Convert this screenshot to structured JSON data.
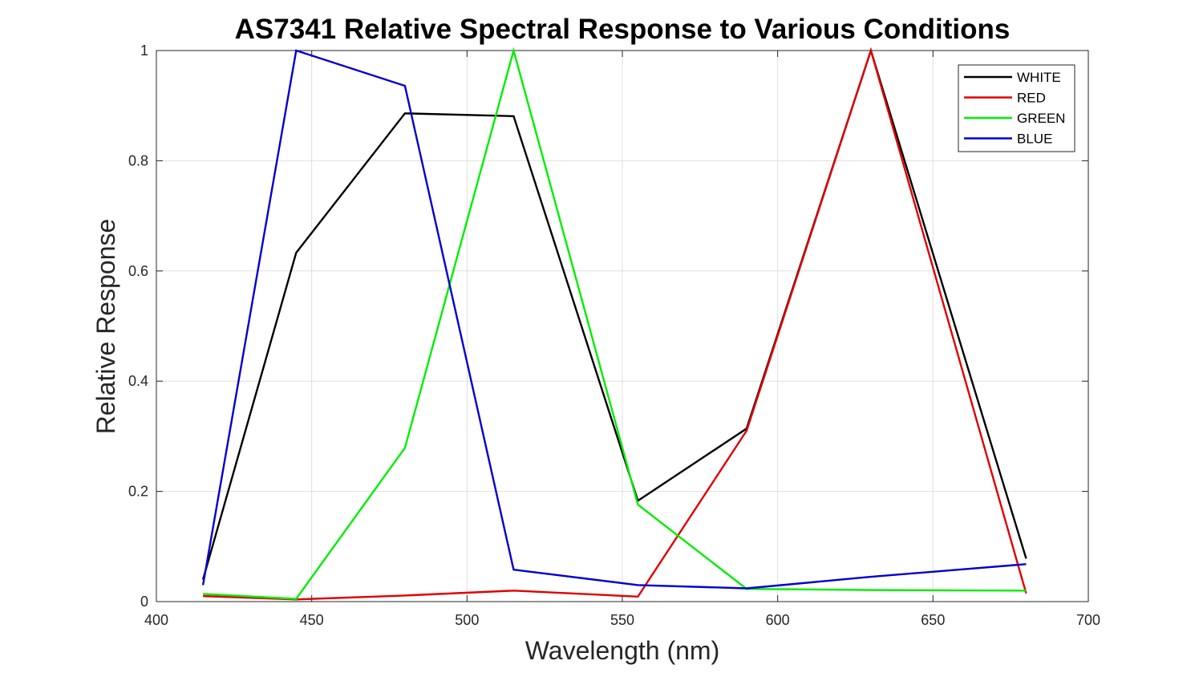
{
  "chart_data": {
    "type": "line",
    "title": "AS7341 Relative Spectral Response to Various Conditions",
    "xlabel": "Wavelength (nm)",
    "ylabel": "Relative Response",
    "xlim": [
      400,
      700
    ],
    "ylim": [
      0,
      1
    ],
    "xticks": [
      400,
      450,
      500,
      550,
      600,
      650,
      700
    ],
    "xtick_labels": [
      "400",
      "450",
      "500",
      "550",
      "600",
      "650",
      "700"
    ],
    "yticks": [
      0,
      0.2,
      0.4,
      0.6,
      0.8,
      1
    ],
    "ytick_labels": [
      "0",
      "0.2",
      "0.4",
      "0.6",
      "0.8",
      "1"
    ],
    "grid": true,
    "legend_position": "top-right",
    "x": [
      415,
      445,
      480,
      515,
      555,
      590,
      630,
      680
    ],
    "series": [
      {
        "name": "WHITE",
        "color": "#000000",
        "values": [
          0.04,
          0.633,
          0.886,
          0.881,
          0.183,
          0.314,
          1.0,
          0.078
        ]
      },
      {
        "name": "RED",
        "color": "#e00000",
        "values": [
          0.01,
          0.004,
          0.011,
          0.02,
          0.009,
          0.31,
          1.0,
          0.015
        ]
      },
      {
        "name": "GREEN",
        "color": "#00ee00",
        "values": [
          0.014,
          0.005,
          0.279,
          1.0,
          0.176,
          0.023,
          0.021,
          0.02
        ]
      },
      {
        "name": "BLUE",
        "color": "#0000d0",
        "values": [
          0.03,
          1.0,
          0.936,
          0.058,
          0.03,
          0.024,
          0.045,
          0.068
        ]
      }
    ]
  }
}
